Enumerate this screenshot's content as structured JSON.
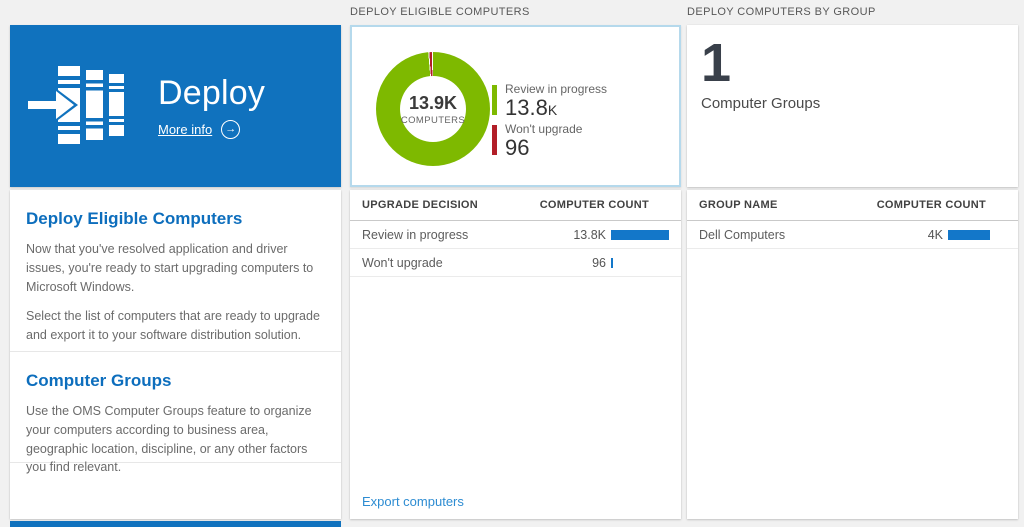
{
  "colors": {
    "tile_blue": "#1072be",
    "heading_blue": "#0d6ebd",
    "link_blue": "#2d8cd2",
    "bar_blue": "#1377c9",
    "donut_green": "#7eb900",
    "donut_red": "#b21e28",
    "chart_card_border": "#b5d9ec",
    "page_bg": "#f1f1f1"
  },
  "left": {
    "tile": {
      "title": "Deploy",
      "more_info_label": "More info",
      "go_arrow": "→"
    },
    "sections": [
      {
        "heading": "Deploy Eligible Computers",
        "paragraphs": [
          "Now that you've resolved application and driver issues, you're ready to start upgrading computers to Microsoft Windows.",
          "Select the list of computers that are ready to upgrade and export it to your software distribution solution."
        ]
      },
      {
        "heading": "Computer Groups",
        "paragraphs": [
          "Use the OMS Computer Groups feature to organize your computers according to business area, geographic location, discipline, or any other factors you find relevant."
        ]
      }
    ]
  },
  "middle": {
    "header": "DEPLOY ELIGIBLE COMPUTERS",
    "donut": {
      "values": [
        13800,
        96
      ],
      "colors": [
        "#7eb900",
        "#b21e28"
      ],
      "center_value": "13.9K",
      "center_label": "COMPUTERS",
      "legend": [
        {
          "label": "Review in progress",
          "value": "13.8",
          "suffix": "K"
        },
        {
          "label": "Won't upgrade",
          "value": "96",
          "suffix": ""
        }
      ]
    },
    "table": {
      "columns": [
        "UPGRADE DECISION",
        "COMPUTER COUNT"
      ],
      "rows": [
        {
          "label": "Review in progress",
          "value": "13.8K",
          "bar": 1.0
        },
        {
          "label": "Won't upgrade",
          "value": "96",
          "bar": 0.02
        }
      ]
    },
    "export_label": "Export computers"
  },
  "right": {
    "header": "DEPLOY COMPUTERS BY GROUP",
    "summary": {
      "count": "1",
      "label": "Computer Groups"
    },
    "table": {
      "columns": [
        "GROUP NAME",
        "COMPUTER COUNT"
      ],
      "rows": [
        {
          "label": "Dell Computers",
          "value": "4K",
          "bar": 0.73
        }
      ]
    }
  },
  "chart_data": [
    {
      "type": "pie",
      "title": "DEPLOY ELIGIBLE COMPUTERS",
      "categories": [
        "Review in progress",
        "Won't upgrade"
      ],
      "values": [
        13800,
        96
      ],
      "value_labels": [
        "13.8K",
        "96"
      ],
      "colors": [
        "#7eb900",
        "#b21e28"
      ],
      "center_value": "13.9K",
      "center_label": "COMPUTERS",
      "legend_position": "right"
    },
    {
      "type": "table",
      "title": "DEPLOY ELIGIBLE COMPUTERS",
      "columns": [
        "UPGRADE DECISION",
        "COMPUTER COUNT"
      ],
      "rows": [
        [
          "Review in progress",
          "13.8K"
        ],
        [
          "Won't upgrade",
          "96"
        ]
      ]
    },
    {
      "type": "table",
      "title": "DEPLOY COMPUTERS BY GROUP",
      "columns": [
        "GROUP NAME",
        "COMPUTER COUNT"
      ],
      "rows": [
        [
          "Dell Computers",
          "4K"
        ]
      ]
    }
  ]
}
